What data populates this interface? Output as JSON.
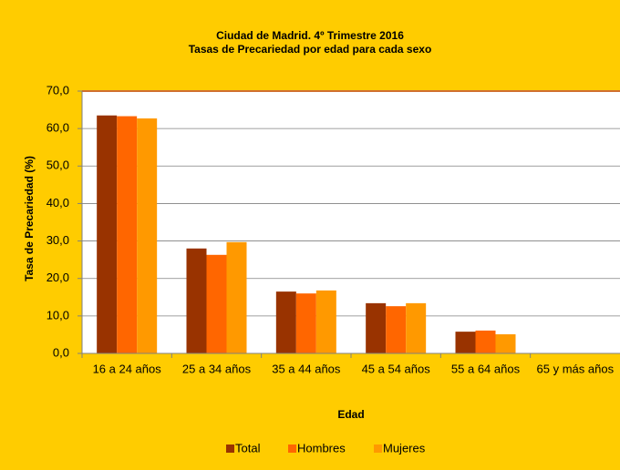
{
  "chart_data": {
    "type": "bar",
    "title": "Ciudad de Madrid. 4º Trimestre 2016",
    "subtitle": "Tasas de Precariedad por edad para cada sexo",
    "x_label": "Edad",
    "y_label": "Tasa de Precariedad (%)",
    "categories": [
      "16 a 24 años",
      "25 a 34 años",
      "35 a 44 años",
      "45 a 54 años",
      "55 a 64 años",
      "65 y más años"
    ],
    "series": [
      {
        "name": "Total",
        "color": "#993300",
        "values": [
          63.5,
          28.0,
          16.5,
          13.4,
          5.8,
          0
        ]
      },
      {
        "name": "Hombres",
        "color": "#ff6600",
        "values": [
          63.3,
          26.3,
          16.0,
          12.6,
          6.1,
          0
        ]
      },
      {
        "name": "Mujeres",
        "color": "#ff9900",
        "values": [
          62.7,
          29.7,
          16.8,
          13.4,
          5.1,
          0
        ]
      }
    ],
    "ylim": [
      0,
      70
    ],
    "yticks": [
      {
        "value": 0,
        "label": "0,0"
      },
      {
        "value": 10,
        "label": "10,0"
      },
      {
        "value": 20,
        "label": "20,0"
      },
      {
        "value": 30,
        "label": "30,0"
      },
      {
        "value": 40,
        "label": "40,0"
      },
      {
        "value": 50,
        "label": "50,0"
      },
      {
        "value": 60,
        "label": "60,0"
      },
      {
        "value": 70,
        "label": "70,0"
      }
    ],
    "grid": true,
    "legend": "bottom"
  }
}
